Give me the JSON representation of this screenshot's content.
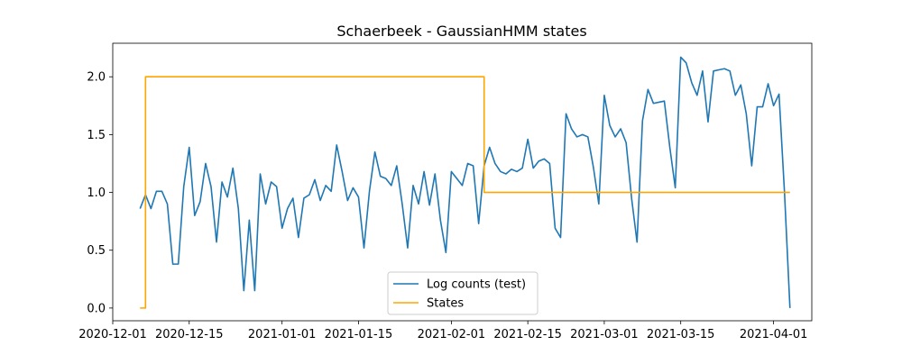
{
  "chart_data": {
    "type": "line",
    "title": "Schaerbeek - GaussianHMM states",
    "xlabel": "",
    "ylabel": "",
    "x_range": [
      "2020-12-01",
      "2021-04-08"
    ],
    "ylim": [
      -0.11,
      2.29
    ],
    "x_ticks": [
      "2020-12-01",
      "2020-12-15",
      "2021-01-01",
      "2021-01-15",
      "2021-02-01",
      "2021-02-15",
      "2021-03-01",
      "2021-03-15",
      "2021-04-01"
    ],
    "y_ticks": [
      0.0,
      0.5,
      1.0,
      1.5,
      2.0
    ],
    "y_tick_labels": [
      "0.0",
      "0.5",
      "1.0",
      "1.5",
      "2.0"
    ],
    "grid": false,
    "legend_position": "lower center",
    "series": [
      {
        "name": "Log counts (test)",
        "color": "#1f77b4",
        "style": "line",
        "points": [
          [
            "2020-12-06",
            0.86
          ],
          [
            "2020-12-07",
            0.98
          ],
          [
            "2020-12-08",
            0.86
          ],
          [
            "2020-12-09",
            1.01
          ],
          [
            "2020-12-10",
            1.01
          ],
          [
            "2020-12-11",
            0.9
          ],
          [
            "2020-12-12",
            0.38
          ],
          [
            "2020-12-13",
            0.38
          ],
          [
            "2020-12-14",
            1.05
          ],
          [
            "2020-12-15",
            1.39
          ],
          [
            "2020-12-16",
            0.8
          ],
          [
            "2020-12-17",
            0.92
          ],
          [
            "2020-12-18",
            1.25
          ],
          [
            "2020-12-19",
            1.05
          ],
          [
            "2020-12-20",
            0.57
          ],
          [
            "2020-12-21",
            1.09
          ],
          [
            "2020-12-22",
            0.96
          ],
          [
            "2020-12-23",
            1.21
          ],
          [
            "2020-12-24",
            0.86
          ],
          [
            "2020-12-25",
            0.15
          ],
          [
            "2020-12-26",
            0.76
          ],
          [
            "2020-12-27",
            0.15
          ],
          [
            "2020-12-28",
            1.16
          ],
          [
            "2020-12-29",
            0.9
          ],
          [
            "2020-12-30",
            1.09
          ],
          [
            "2020-12-31",
            1.05
          ],
          [
            "2021-01-01",
            0.69
          ],
          [
            "2021-01-02",
            0.86
          ],
          [
            "2021-01-03",
            0.95
          ],
          [
            "2021-01-04",
            0.61
          ],
          [
            "2021-01-05",
            0.95
          ],
          [
            "2021-01-06",
            0.98
          ],
          [
            "2021-01-07",
            1.11
          ],
          [
            "2021-01-08",
            0.93
          ],
          [
            "2021-01-09",
            1.06
          ],
          [
            "2021-01-10",
            1.01
          ],
          [
            "2021-01-11",
            1.41
          ],
          [
            "2021-01-12",
            1.18
          ],
          [
            "2021-01-13",
            0.93
          ],
          [
            "2021-01-14",
            1.04
          ],
          [
            "2021-01-15",
            0.96
          ],
          [
            "2021-01-16",
            0.52
          ],
          [
            "2021-01-17",
            1.01
          ],
          [
            "2021-01-18",
            1.35
          ],
          [
            "2021-01-19",
            1.14
          ],
          [
            "2021-01-20",
            1.12
          ],
          [
            "2021-01-21",
            1.06
          ],
          [
            "2021-01-22",
            1.23
          ],
          [
            "2021-01-23",
            0.9
          ],
          [
            "2021-01-24",
            0.52
          ],
          [
            "2021-01-25",
            1.06
          ],
          [
            "2021-01-26",
            0.9
          ],
          [
            "2021-01-27",
            1.18
          ],
          [
            "2021-01-28",
            0.89
          ],
          [
            "2021-01-29",
            1.16
          ],
          [
            "2021-01-30",
            0.76
          ],
          [
            "2021-01-31",
            0.48
          ],
          [
            "2021-02-01",
            1.18
          ],
          [
            "2021-02-02",
            1.12
          ],
          [
            "2021-02-03",
            1.06
          ],
          [
            "2021-02-04",
            1.25
          ],
          [
            "2021-02-05",
            1.23
          ],
          [
            "2021-02-06",
            0.73
          ],
          [
            "2021-02-07",
            1.23
          ],
          [
            "2021-02-08",
            1.39
          ],
          [
            "2021-02-09",
            1.25
          ],
          [
            "2021-02-10",
            1.18
          ],
          [
            "2021-02-11",
            1.16
          ],
          [
            "2021-02-12",
            1.2
          ],
          [
            "2021-02-13",
            1.18
          ],
          [
            "2021-02-14",
            1.21
          ],
          [
            "2021-02-15",
            1.46
          ],
          [
            "2021-02-16",
            1.21
          ],
          [
            "2021-02-17",
            1.27
          ],
          [
            "2021-02-18",
            1.29
          ],
          [
            "2021-02-19",
            1.25
          ],
          [
            "2021-02-20",
            0.69
          ],
          [
            "2021-02-21",
            0.61
          ],
          [
            "2021-02-22",
            1.68
          ],
          [
            "2021-02-23",
            1.55
          ],
          [
            "2021-02-24",
            1.48
          ],
          [
            "2021-02-25",
            1.5
          ],
          [
            "2021-02-26",
            1.48
          ],
          [
            "2021-02-27",
            1.22
          ],
          [
            "2021-02-28",
            0.9
          ],
          [
            "2021-03-01",
            1.84
          ],
          [
            "2021-03-02",
            1.58
          ],
          [
            "2021-03-03",
            1.48
          ],
          [
            "2021-03-04",
            1.55
          ],
          [
            "2021-03-05",
            1.43
          ],
          [
            "2021-03-06",
            0.95
          ],
          [
            "2021-03-07",
            0.57
          ],
          [
            "2021-03-08",
            1.62
          ],
          [
            "2021-03-09",
            1.89
          ],
          [
            "2021-03-10",
            1.77
          ],
          [
            "2021-03-11",
            1.78
          ],
          [
            "2021-03-12",
            1.79
          ],
          [
            "2021-03-13",
            1.39
          ],
          [
            "2021-03-14",
            1.04
          ],
          [
            "2021-03-15",
            2.17
          ],
          [
            "2021-03-16",
            2.12
          ],
          [
            "2021-03-17",
            1.95
          ],
          [
            "2021-03-18",
            1.84
          ],
          [
            "2021-03-19",
            2.05
          ],
          [
            "2021-03-20",
            1.61
          ],
          [
            "2021-03-21",
            2.05
          ],
          [
            "2021-03-22",
            2.06
          ],
          [
            "2021-03-23",
            2.07
          ],
          [
            "2021-03-24",
            2.05
          ],
          [
            "2021-03-25",
            1.84
          ],
          [
            "2021-03-26",
            1.93
          ],
          [
            "2021-03-27",
            1.68
          ],
          [
            "2021-03-28",
            1.23
          ],
          [
            "2021-03-29",
            1.74
          ],
          [
            "2021-03-30",
            1.74
          ],
          [
            "2021-03-31",
            1.94
          ],
          [
            "2021-04-01",
            1.75
          ],
          [
            "2021-04-02",
            1.85
          ],
          [
            "2021-04-03",
            1.0
          ],
          [
            "2021-04-04",
            0.0
          ]
        ]
      },
      {
        "name": "States",
        "color": "#ffa500",
        "style": "step",
        "points": [
          [
            "2020-12-06",
            0
          ],
          [
            "2020-12-07",
            0
          ],
          [
            "2020-12-07",
            2
          ],
          [
            "2021-02-07",
            2
          ],
          [
            "2021-02-07",
            1
          ],
          [
            "2021-04-04",
            1
          ]
        ]
      }
    ]
  }
}
